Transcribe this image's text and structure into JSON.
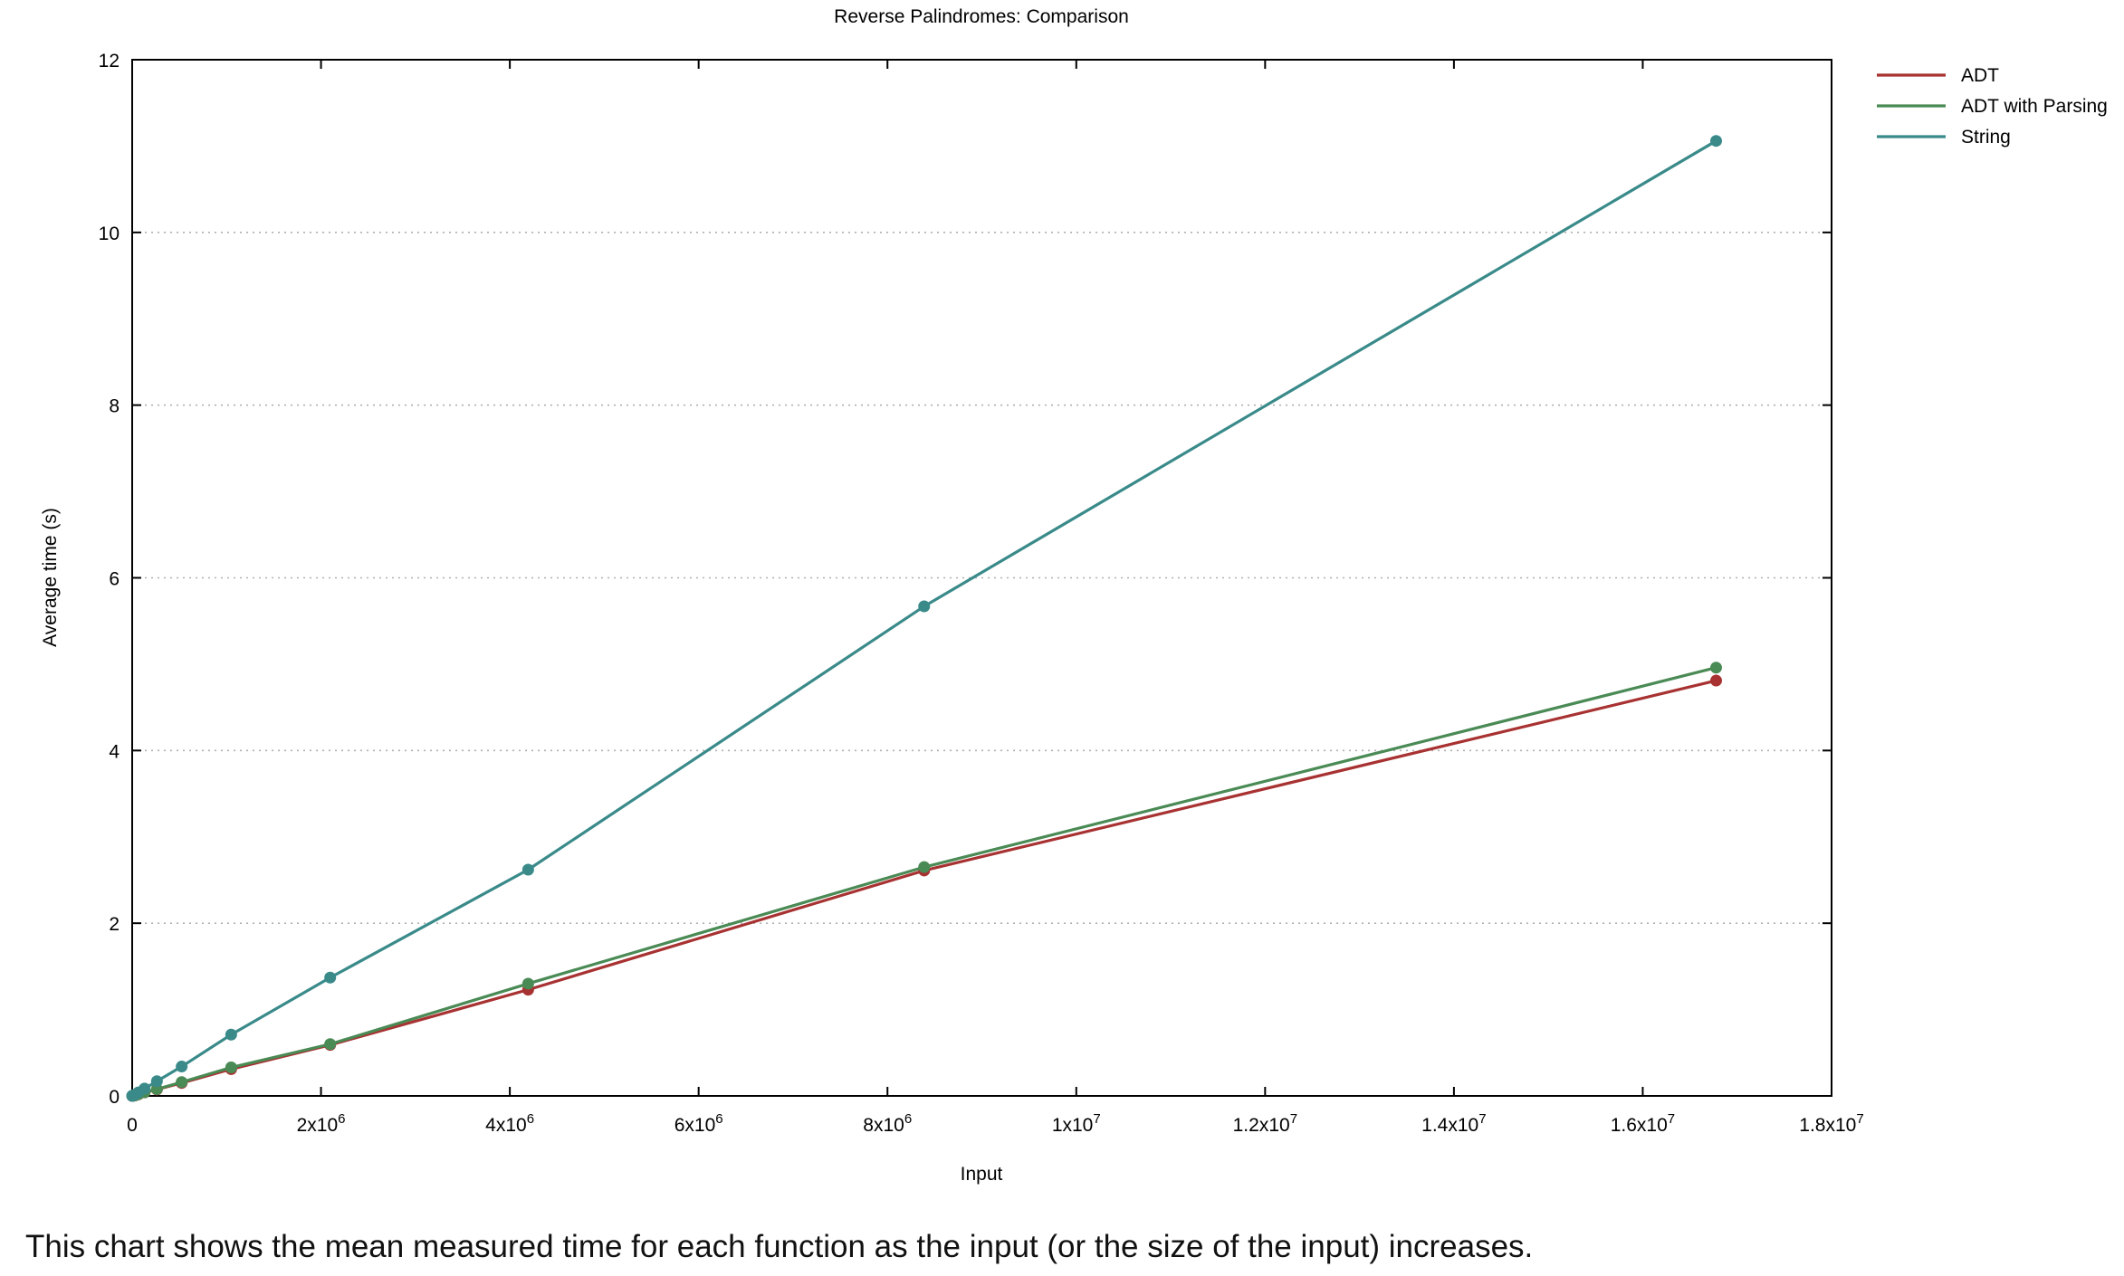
{
  "chart_data": {
    "type": "line",
    "title": "Reverse Palindromes: Comparison",
    "xlabel": "Input",
    "ylabel": "Average time (s)",
    "xlim": [
      0,
      18000000
    ],
    "ylim": [
      0,
      12
    ],
    "x_ticks": [
      {
        "value": 0,
        "base": "0",
        "exp": ""
      },
      {
        "value": 2000000,
        "base": "2x10",
        "exp": "6"
      },
      {
        "value": 4000000,
        "base": "4x10",
        "exp": "6"
      },
      {
        "value": 6000000,
        "base": "6x10",
        "exp": "6"
      },
      {
        "value": 8000000,
        "base": "8x10",
        "exp": "6"
      },
      {
        "value": 10000000,
        "base": "1x10",
        "exp": "7"
      },
      {
        "value": 12000000,
        "base": "1.2x10",
        "exp": "7"
      },
      {
        "value": 14000000,
        "base": "1.4x10",
        "exp": "7"
      },
      {
        "value": 16000000,
        "base": "1.6x10",
        "exp": "7"
      },
      {
        "value": 18000000,
        "base": "1.8x10",
        "exp": "7"
      }
    ],
    "y_ticks": [
      0,
      2,
      4,
      6,
      8,
      10,
      12
    ],
    "grid": {
      "y": true,
      "x": false
    },
    "legend": "top-right",
    "series": [
      {
        "name": "ADT",
        "color": "#a83232",
        "x": [
          1024,
          2048,
          4096,
          8192,
          16384,
          32768,
          65536,
          131072,
          262144,
          524288,
          1048576,
          2097152,
          4194304,
          8388608,
          16777216
        ],
        "y": [
          0.0002,
          0.0004,
          0.0008,
          0.0016,
          0.003,
          0.006,
          0.018,
          0.04,
          0.075,
          0.15,
          0.31,
          0.59,
          1.23,
          2.61,
          4.81
        ]
      },
      {
        "name": "ADT with Parsing",
        "color": "#4a8a55",
        "x": [
          1024,
          2048,
          4096,
          8192,
          16384,
          32768,
          65536,
          131072,
          262144,
          524288,
          1048576,
          2097152,
          4194304,
          8388608,
          16777216
        ],
        "y": [
          0.0002,
          0.0004,
          0.0008,
          0.0017,
          0.0035,
          0.007,
          0.02,
          0.042,
          0.078,
          0.16,
          0.33,
          0.6,
          1.3,
          2.65,
          4.96
        ]
      },
      {
        "name": "String",
        "color": "#3a8a8a",
        "x": [
          1024,
          2048,
          4096,
          8192,
          16384,
          32768,
          65536,
          131072,
          262144,
          524288,
          1048576,
          2097152,
          4194304,
          8388608,
          16777216
        ],
        "y": [
          0.0005,
          0.001,
          0.002,
          0.004,
          0.008,
          0.016,
          0.04,
          0.085,
          0.17,
          0.34,
          0.71,
          1.37,
          2.62,
          5.67,
          11.06
        ]
      }
    ]
  },
  "caption": "This chart shows the mean measured time for each function as the input (or the size of the input) increases."
}
